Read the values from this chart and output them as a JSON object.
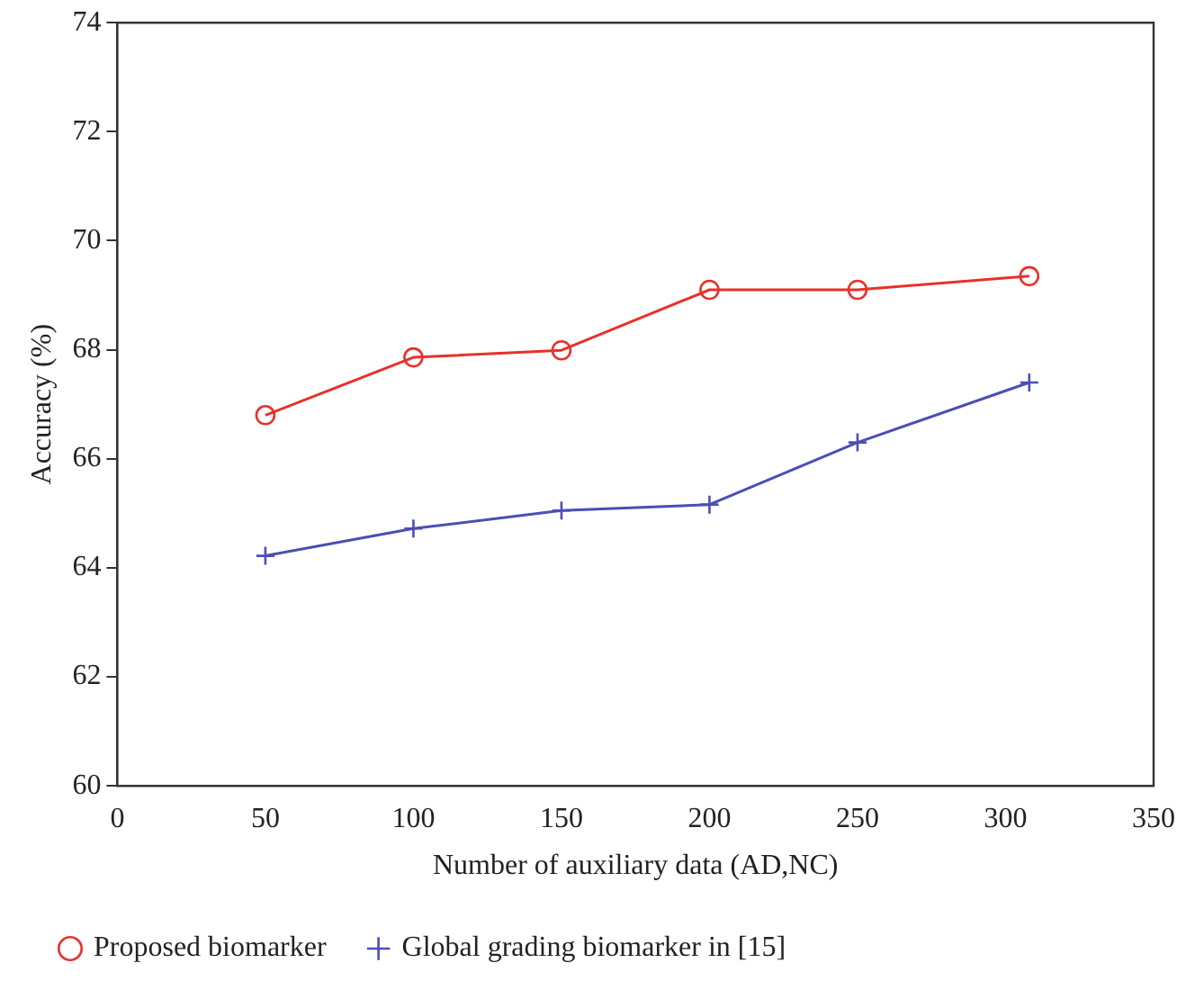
{
  "chart_data": {
    "type": "line",
    "xlabel": "Number of auxiliary data (AD,NC)",
    "ylabel": "Accuracy (%)",
    "xlim": [
      0,
      350
    ],
    "xticks": [
      0,
      50,
      100,
      150,
      200,
      250,
      300,
      350
    ],
    "ylim": [
      60,
      74
    ],
    "yticks": [
      60,
      62,
      64,
      66,
      68,
      70,
      72,
      74
    ],
    "grid": false,
    "legend": "bottom",
    "series": [
      {
        "name": "Proposed biomarker",
        "color": "#e8312a",
        "marker": "circle",
        "x": [
          50,
          100,
          150,
          200,
          250,
          308
        ],
        "values": [
          66.8,
          67.86,
          67.99,
          69.1,
          69.1,
          69.35
        ]
      },
      {
        "name": "Global grading biomarker in [15]",
        "color": "#4a4fb5",
        "marker": "cross",
        "x": [
          50,
          100,
          150,
          200,
          250,
          308
        ],
        "values": [
          64.22,
          64.72,
          65.05,
          65.16,
          66.3,
          67.4
        ]
      }
    ]
  }
}
